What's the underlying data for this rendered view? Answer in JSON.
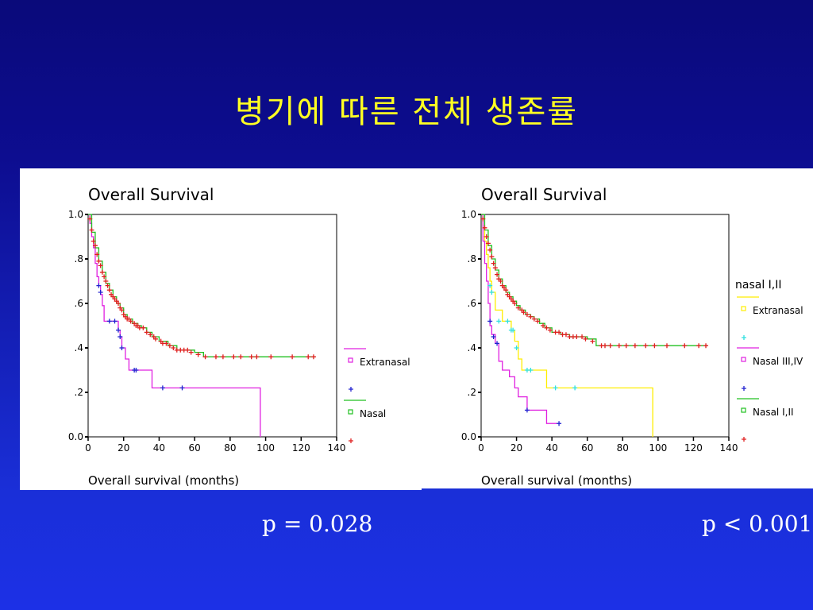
{
  "slide": {
    "title": "병기에 따른 전체 생존률"
  },
  "plots": [
    {
      "title": "Overall Survival",
      "xlabel": "Overall survival (months)",
      "p_value": "p = 0.028",
      "legend_heading": "",
      "legend": [
        {
          "label": "Extranasal",
          "color": "#e020e0"
        },
        {
          "label": "Nasal",
          "color": "#20c020"
        }
      ]
    },
    {
      "title": "Overall Survival",
      "xlabel": "Overall survival (months)",
      "p_value": "p < 0.001",
      "legend_heading": "nasal I,II",
      "legend": [
        {
          "label": "Extranasal",
          "color": "#ffee00"
        },
        {
          "label": "Nasal III,IV",
          "color": "#e020e0"
        },
        {
          "label": "Nasal I,II",
          "color": "#20c020"
        }
      ]
    }
  ],
  "chart_data": [
    {
      "type": "line",
      "title": "Overall Survival",
      "xlabel": "Overall survival (months)",
      "xlim": [
        0,
        140
      ],
      "ylim": [
        0,
        1
      ],
      "xticks": [
        0,
        20,
        40,
        60,
        80,
        100,
        120,
        140
      ],
      "xticklabels": [
        "0",
        "20",
        "40",
        "60",
        "80",
        "100",
        "120",
        "140"
      ],
      "yticks": [
        0,
        0.2,
        0.4,
        0.6,
        0.8,
        1.0
      ],
      "yticklabels": [
        "0.0",
        ".2",
        ".4",
        ".6",
        ".8",
        "1.0"
      ],
      "series": [
        {
          "name": "Extranasal",
          "color": "#e020e0",
          "censor_color": "#2020d0",
          "x": [
            0,
            1,
            2,
            3,
            4,
            5,
            6,
            7,
            8,
            9,
            12,
            15,
            17,
            18,
            19,
            21,
            23,
            27,
            35,
            36,
            41,
            53,
            60,
            96,
            97
          ],
          "y": [
            1.0,
            0.96,
            0.9,
            0.85,
            0.78,
            0.72,
            0.68,
            0.64,
            0.59,
            0.52,
            0.52,
            0.52,
            0.48,
            0.45,
            0.4,
            0.35,
            0.3,
            0.3,
            0.3,
            0.22,
            0.22,
            0.22,
            0.22,
            0.22,
            0.0
          ],
          "censored": [
            [
              6,
              0.68
            ],
            [
              7,
              0.65
            ],
            [
              12,
              0.52
            ],
            [
              15,
              0.52
            ],
            [
              17,
              0.48
            ],
            [
              18,
              0.45
            ],
            [
              19,
              0.4
            ],
            [
              26,
              0.3
            ],
            [
              27,
              0.3
            ],
            [
              42,
              0.22
            ],
            [
              53,
              0.22
            ]
          ]
        },
        {
          "name": "Nasal",
          "color": "#20c020",
          "censor_color": "#e02020",
          "x": [
            0,
            2,
            4,
            6,
            8,
            10,
            12,
            14,
            16,
            18,
            20,
            22,
            25,
            28,
            30,
            33,
            36,
            40,
            45,
            50,
            55,
            60,
            65,
            70,
            80,
            90,
            100,
            110,
            120,
            128
          ],
          "y": [
            1.0,
            0.92,
            0.85,
            0.79,
            0.74,
            0.69,
            0.66,
            0.63,
            0.6,
            0.58,
            0.55,
            0.53,
            0.51,
            0.5,
            0.49,
            0.47,
            0.45,
            0.43,
            0.41,
            0.39,
            0.39,
            0.38,
            0.36,
            0.36,
            0.36,
            0.36,
            0.36,
            0.36,
            0.36,
            0.36
          ],
          "censored": [
            [
              1,
              0.98
            ],
            [
              2,
              0.93
            ],
            [
              3,
              0.88
            ],
            [
              4,
              0.86
            ],
            [
              5,
              0.82
            ],
            [
              6,
              0.79
            ],
            [
              7,
              0.77
            ],
            [
              8,
              0.74
            ],
            [
              9,
              0.72
            ],
            [
              10,
              0.7
            ],
            [
              11,
              0.68
            ],
            [
              12,
              0.66
            ],
            [
              13,
              0.64
            ],
            [
              14,
              0.63
            ],
            [
              15,
              0.62
            ],
            [
              16,
              0.61
            ],
            [
              17,
              0.6
            ],
            [
              18,
              0.58
            ],
            [
              19,
              0.57
            ],
            [
              20,
              0.55
            ],
            [
              21,
              0.54
            ],
            [
              22,
              0.53
            ],
            [
              23,
              0.53
            ],
            [
              24,
              0.52
            ],
            [
              26,
              0.51
            ],
            [
              27,
              0.5
            ],
            [
              28,
              0.5
            ],
            [
              29,
              0.49
            ],
            [
              31,
              0.49
            ],
            [
              33,
              0.47
            ],
            [
              35,
              0.46
            ],
            [
              37,
              0.45
            ],
            [
              38,
              0.44
            ],
            [
              41,
              0.43
            ],
            [
              42,
              0.42
            ],
            [
              44,
              0.42
            ],
            [
              46,
              0.41
            ],
            [
              48,
              0.4
            ],
            [
              50,
              0.39
            ],
            [
              52,
              0.39
            ],
            [
              54,
              0.39
            ],
            [
              56,
              0.39
            ],
            [
              58,
              0.38
            ],
            [
              62,
              0.37
            ],
            [
              66,
              0.36
            ],
            [
              72,
              0.36
            ],
            [
              76,
              0.36
            ],
            [
              82,
              0.36
            ],
            [
              86,
              0.36
            ],
            [
              92,
              0.36
            ],
            [
              95,
              0.36
            ],
            [
              103,
              0.36
            ],
            [
              115,
              0.36
            ],
            [
              124,
              0.36
            ],
            [
              127,
              0.36
            ]
          ]
        }
      ]
    },
    {
      "type": "line",
      "title": "Overall Survival",
      "xlabel": "Overall survival (months)",
      "xlim": [
        0,
        140
      ],
      "ylim": [
        0,
        1
      ],
      "xticks": [
        0,
        20,
        40,
        60,
        80,
        100,
        120,
        140
      ],
      "xticklabels": [
        "0",
        "20",
        "40",
        "60",
        "80",
        "100",
        "120",
        "140"
      ],
      "yticks": [
        0,
        0.2,
        0.4,
        0.6,
        0.8,
        1.0
      ],
      "yticklabels": [
        "0.0",
        ".2",
        ".4",
        ".6",
        ".8",
        "1.0"
      ],
      "series": [
        {
          "name": "Extranasal",
          "color": "#ffee00",
          "censor_color": "#30e0e0",
          "x": [
            0,
            1,
            2,
            3,
            4,
            5,
            6,
            8,
            12,
            15,
            17,
            19,
            21,
            23,
            27,
            35,
            37,
            41,
            53,
            96,
            97
          ],
          "y": [
            1.0,
            0.94,
            0.88,
            0.82,
            0.76,
            0.7,
            0.65,
            0.57,
            0.52,
            0.52,
            0.48,
            0.43,
            0.35,
            0.3,
            0.3,
            0.3,
            0.22,
            0.22,
            0.22,
            0.22,
            0.0
          ],
          "censored": [
            [
              5,
              0.68
            ],
            [
              6,
              0.65
            ],
            [
              10,
              0.52
            ],
            [
              15,
              0.52
            ],
            [
              17,
              0.48
            ],
            [
              18,
              0.48
            ],
            [
              20,
              0.4
            ],
            [
              26,
              0.3
            ],
            [
              28,
              0.3
            ],
            [
              42,
              0.22
            ],
            [
              53,
              0.22
            ]
          ]
        },
        {
          "name": "Nasal III,IV",
          "color": "#e020e0",
          "censor_color": "#2020d0",
          "x": [
            0,
            1,
            2,
            3,
            4,
            5,
            6,
            8,
            10,
            12,
            16,
            19,
            21,
            25,
            26,
            36,
            37,
            43
          ],
          "y": [
            1.0,
            0.88,
            0.78,
            0.7,
            0.6,
            0.5,
            0.46,
            0.42,
            0.34,
            0.3,
            0.27,
            0.22,
            0.18,
            0.18,
            0.12,
            0.12,
            0.06,
            0.06
          ],
          "censored": [
            [
              5,
              0.52
            ],
            [
              7,
              0.45
            ],
            [
              9,
              0.42
            ],
            [
              26,
              0.12
            ],
            [
              44,
              0.06
            ]
          ]
        },
        {
          "name": "Nasal I,II",
          "color": "#20c020",
          "censor_color": "#e02020",
          "x": [
            0,
            2,
            4,
            6,
            8,
            10,
            12,
            14,
            16,
            18,
            20,
            22,
            25,
            28,
            30,
            33,
            36,
            40,
            45,
            50,
            55,
            60,
            65,
            68,
            75,
            85,
            95,
            105,
            115,
            128
          ],
          "y": [
            1.0,
            0.93,
            0.86,
            0.8,
            0.75,
            0.71,
            0.68,
            0.65,
            0.63,
            0.61,
            0.59,
            0.57,
            0.55,
            0.54,
            0.53,
            0.51,
            0.49,
            0.47,
            0.46,
            0.45,
            0.45,
            0.44,
            0.41,
            0.41,
            0.41,
            0.41,
            0.41,
            0.41,
            0.41,
            0.41
          ],
          "censored": [
            [
              1,
              0.98
            ],
            [
              2,
              0.94
            ],
            [
              3,
              0.9
            ],
            [
              4,
              0.87
            ],
            [
              5,
              0.84
            ],
            [
              6,
              0.81
            ],
            [
              7,
              0.78
            ],
            [
              8,
              0.76
            ],
            [
              9,
              0.73
            ],
            [
              10,
              0.71
            ],
            [
              11,
              0.7
            ],
            [
              12,
              0.68
            ],
            [
              13,
              0.67
            ],
            [
              14,
              0.66
            ],
            [
              15,
              0.64
            ],
            [
              16,
              0.63
            ],
            [
              17,
              0.62
            ],
            [
              18,
              0.61
            ],
            [
              19,
              0.6
            ],
            [
              21,
              0.58
            ],
            [
              23,
              0.57
            ],
            [
              24,
              0.56
            ],
            [
              26,
              0.55
            ],
            [
              28,
              0.54
            ],
            [
              30,
              0.53
            ],
            [
              32,
              0.52
            ],
            [
              35,
              0.5
            ],
            [
              37,
              0.49
            ],
            [
              39,
              0.48
            ],
            [
              42,
              0.47
            ],
            [
              44,
              0.47
            ],
            [
              46,
              0.46
            ],
            [
              48,
              0.46
            ],
            [
              50,
              0.45
            ],
            [
              52,
              0.45
            ],
            [
              54,
              0.45
            ],
            [
              57,
              0.45
            ],
            [
              59,
              0.44
            ],
            [
              63,
              0.43
            ],
            [
              68,
              0.41
            ],
            [
              70,
              0.41
            ],
            [
              73,
              0.41
            ],
            [
              78,
              0.41
            ],
            [
              82,
              0.41
            ],
            [
              87,
              0.41
            ],
            [
              93,
              0.41
            ],
            [
              98,
              0.41
            ],
            [
              105,
              0.41
            ],
            [
              115,
              0.41
            ],
            [
              123,
              0.41
            ],
            [
              127,
              0.41
            ]
          ]
        }
      ]
    }
  ]
}
